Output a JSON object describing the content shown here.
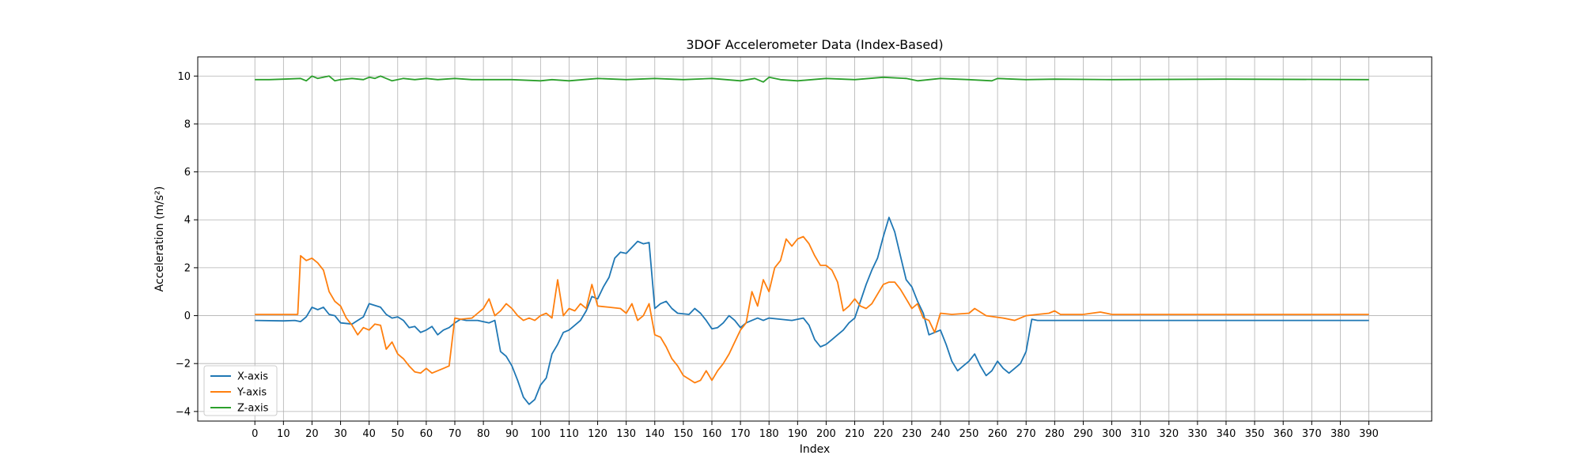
{
  "chart_data": {
    "type": "line",
    "title": "3DOF Accelerometer Data (Index-Based)",
    "xlabel": "Index",
    "ylabel": "Acceleration (m/s²)",
    "xlim": [
      -20,
      412
    ],
    "ylim": [
      -4.4,
      10.8
    ],
    "xticks": [
      0,
      10,
      20,
      30,
      40,
      50,
      60,
      70,
      80,
      90,
      100,
      110,
      120,
      130,
      140,
      150,
      160,
      170,
      180,
      190,
      200,
      210,
      220,
      230,
      240,
      250,
      260,
      270,
      280,
      290,
      300,
      310,
      320,
      330,
      340,
      350,
      360,
      370,
      380,
      390
    ],
    "yticks": [
      -4,
      -2,
      0,
      2,
      4,
      6,
      8,
      10
    ],
    "grid": true,
    "legend_position": "lower-left",
    "series": [
      {
        "name": "X-axis",
        "color": "#1f77b4",
        "points": [
          [
            0,
            -0.2
          ],
          [
            10,
            -0.22
          ],
          [
            14,
            -0.2
          ],
          [
            16,
            -0.25
          ],
          [
            18,
            -0.05
          ],
          [
            20,
            0.35
          ],
          [
            22,
            0.25
          ],
          [
            24,
            0.35
          ],
          [
            26,
            0.05
          ],
          [
            28,
            0.0
          ],
          [
            30,
            -0.3
          ],
          [
            34,
            -0.35
          ],
          [
            36,
            -0.2
          ],
          [
            38,
            -0.05
          ],
          [
            40,
            0.5
          ],
          [
            44,
            0.35
          ],
          [
            46,
            0.05
          ],
          [
            48,
            -0.1
          ],
          [
            50,
            -0.05
          ],
          [
            52,
            -0.2
          ],
          [
            54,
            -0.5
          ],
          [
            56,
            -0.45
          ],
          [
            58,
            -0.7
          ],
          [
            60,
            -0.6
          ],
          [
            62,
            -0.45
          ],
          [
            64,
            -0.8
          ],
          [
            66,
            -0.6
          ],
          [
            68,
            -0.5
          ],
          [
            70,
            -0.3
          ],
          [
            72,
            -0.15
          ],
          [
            74,
            -0.2
          ],
          [
            78,
            -0.2
          ],
          [
            82,
            -0.3
          ],
          [
            84,
            -0.2
          ],
          [
            86,
            -1.5
          ],
          [
            88,
            -1.7
          ],
          [
            90,
            -2.1
          ],
          [
            92,
            -2.7
          ],
          [
            94,
            -3.4
          ],
          [
            96,
            -3.7
          ],
          [
            98,
            -3.5
          ],
          [
            100,
            -2.9
          ],
          [
            102,
            -2.6
          ],
          [
            104,
            -1.6
          ],
          [
            106,
            -1.2
          ],
          [
            108,
            -0.7
          ],
          [
            110,
            -0.6
          ],
          [
            112,
            -0.4
          ],
          [
            114,
            -0.2
          ],
          [
            116,
            0.2
          ],
          [
            118,
            0.8
          ],
          [
            120,
            0.7
          ],
          [
            122,
            1.2
          ],
          [
            124,
            1.6
          ],
          [
            126,
            2.4
          ],
          [
            128,
            2.65
          ],
          [
            130,
            2.6
          ],
          [
            132,
            2.85
          ],
          [
            134,
            3.1
          ],
          [
            136,
            3.0
          ],
          [
            138,
            3.05
          ],
          [
            140,
            0.3
          ],
          [
            142,
            0.5
          ],
          [
            144,
            0.6
          ],
          [
            146,
            0.3
          ],
          [
            148,
            0.1
          ],
          [
            152,
            0.05
          ],
          [
            154,
            0.3
          ],
          [
            156,
            0.1
          ],
          [
            158,
            -0.2
          ],
          [
            160,
            -0.55
          ],
          [
            162,
            -0.5
          ],
          [
            164,
            -0.3
          ],
          [
            166,
            0.0
          ],
          [
            168,
            -0.2
          ],
          [
            170,
            -0.5
          ],
          [
            172,
            -0.3
          ],
          [
            174,
            -0.2
          ],
          [
            176,
            -0.1
          ],
          [
            178,
            -0.2
          ],
          [
            180,
            -0.1
          ],
          [
            184,
            -0.15
          ],
          [
            188,
            -0.2
          ],
          [
            192,
            -0.1
          ],
          [
            194,
            -0.4
          ],
          [
            196,
            -1.0
          ],
          [
            198,
            -1.3
          ],
          [
            200,
            -1.2
          ],
          [
            202,
            -1.0
          ],
          [
            204,
            -0.8
          ],
          [
            206,
            -0.6
          ],
          [
            208,
            -0.3
          ],
          [
            210,
            -0.1
          ],
          [
            212,
            0.6
          ],
          [
            214,
            1.3
          ],
          [
            216,
            1.9
          ],
          [
            218,
            2.4
          ],
          [
            220,
            3.3
          ],
          [
            222,
            4.1
          ],
          [
            224,
            3.5
          ],
          [
            226,
            2.5
          ],
          [
            228,
            1.5
          ],
          [
            230,
            1.2
          ],
          [
            232,
            0.6
          ],
          [
            234,
            0.1
          ],
          [
            236,
            -0.8
          ],
          [
            238,
            -0.7
          ],
          [
            240,
            -0.6
          ],
          [
            242,
            -1.2
          ],
          [
            244,
            -1.9
          ],
          [
            246,
            -2.3
          ],
          [
            248,
            -2.1
          ],
          [
            250,
            -1.9
          ],
          [
            252,
            -1.6
          ],
          [
            254,
            -2.1
          ],
          [
            256,
            -2.5
          ],
          [
            258,
            -2.3
          ],
          [
            260,
            -1.9
          ],
          [
            262,
            -2.2
          ],
          [
            264,
            -2.4
          ],
          [
            266,
            -2.2
          ],
          [
            268,
            -2.0
          ],
          [
            270,
            -1.5
          ],
          [
            272,
            -0.15
          ],
          [
            274,
            -0.2
          ],
          [
            300,
            -0.2
          ],
          [
            340,
            -0.2
          ],
          [
            390,
            -0.2
          ]
        ]
      },
      {
        "name": "Y-axis",
        "color": "#ff7f0e",
        "points": [
          [
            0,
            0.05
          ],
          [
            10,
            0.05
          ],
          [
            15,
            0.05
          ],
          [
            16,
            2.5
          ],
          [
            18,
            2.3
          ],
          [
            20,
            2.4
          ],
          [
            22,
            2.2
          ],
          [
            24,
            1.9
          ],
          [
            26,
            1.0
          ],
          [
            28,
            0.6
          ],
          [
            30,
            0.4
          ],
          [
            32,
            -0.1
          ],
          [
            34,
            -0.4
          ],
          [
            36,
            -0.8
          ],
          [
            38,
            -0.5
          ],
          [
            40,
            -0.6
          ],
          [
            42,
            -0.35
          ],
          [
            44,
            -0.4
          ],
          [
            46,
            -1.4
          ],
          [
            48,
            -1.1
          ],
          [
            50,
            -1.6
          ],
          [
            52,
            -1.8
          ],
          [
            54,
            -2.1
          ],
          [
            56,
            -2.35
          ],
          [
            58,
            -2.4
          ],
          [
            60,
            -2.2
          ],
          [
            62,
            -2.4
          ],
          [
            64,
            -2.3
          ],
          [
            66,
            -2.2
          ],
          [
            68,
            -2.1
          ],
          [
            70,
            -0.1
          ],
          [
            72,
            -0.15
          ],
          [
            76,
            -0.1
          ],
          [
            78,
            0.1
          ],
          [
            80,
            0.3
          ],
          [
            82,
            0.7
          ],
          [
            84,
            0.0
          ],
          [
            86,
            0.2
          ],
          [
            88,
            0.5
          ],
          [
            90,
            0.3
          ],
          [
            92,
            0.0
          ],
          [
            94,
            -0.2
          ],
          [
            96,
            -0.1
          ],
          [
            98,
            -0.2
          ],
          [
            100,
            0.0
          ],
          [
            102,
            0.1
          ],
          [
            104,
            -0.1
          ],
          [
            106,
            1.5
          ],
          [
            108,
            0.0
          ],
          [
            110,
            0.3
          ],
          [
            112,
            0.2
          ],
          [
            114,
            0.5
          ],
          [
            116,
            0.3
          ],
          [
            118,
            1.3
          ],
          [
            120,
            0.4
          ],
          [
            124,
            0.35
          ],
          [
            128,
            0.3
          ],
          [
            130,
            0.1
          ],
          [
            132,
            0.5
          ],
          [
            134,
            -0.2
          ],
          [
            136,
            0.0
          ],
          [
            138,
            0.5
          ],
          [
            140,
            -0.8
          ],
          [
            142,
            -0.9
          ],
          [
            144,
            -1.3
          ],
          [
            146,
            -1.8
          ],
          [
            148,
            -2.1
          ],
          [
            150,
            -2.5
          ],
          [
            152,
            -2.65
          ],
          [
            154,
            -2.8
          ],
          [
            156,
            -2.7
          ],
          [
            158,
            -2.3
          ],
          [
            160,
            -2.7
          ],
          [
            162,
            -2.3
          ],
          [
            164,
            -2.0
          ],
          [
            166,
            -1.6
          ],
          [
            168,
            -1.1
          ],
          [
            170,
            -0.6
          ],
          [
            172,
            -0.3
          ],
          [
            174,
            1.0
          ],
          [
            176,
            0.4
          ],
          [
            178,
            1.5
          ],
          [
            180,
            1.0
          ],
          [
            182,
            2.0
          ],
          [
            184,
            2.3
          ],
          [
            186,
            3.2
          ],
          [
            188,
            2.9
          ],
          [
            190,
            3.2
          ],
          [
            192,
            3.3
          ],
          [
            194,
            3.0
          ],
          [
            196,
            2.5
          ],
          [
            198,
            2.1
          ],
          [
            200,
            2.1
          ],
          [
            202,
            1.9
          ],
          [
            204,
            1.4
          ],
          [
            206,
            0.2
          ],
          [
            208,
            0.4
          ],
          [
            210,
            0.7
          ],
          [
            212,
            0.4
          ],
          [
            214,
            0.3
          ],
          [
            216,
            0.5
          ],
          [
            218,
            0.9
          ],
          [
            220,
            1.3
          ],
          [
            222,
            1.4
          ],
          [
            224,
            1.4
          ],
          [
            226,
            1.1
          ],
          [
            228,
            0.7
          ],
          [
            230,
            0.3
          ],
          [
            232,
            0.5
          ],
          [
            234,
            -0.1
          ],
          [
            236,
            -0.2
          ],
          [
            238,
            -0.7
          ],
          [
            240,
            0.1
          ],
          [
            244,
            0.05
          ],
          [
            250,
            0.1
          ],
          [
            252,
            0.3
          ],
          [
            256,
            0.0
          ],
          [
            262,
            -0.1
          ],
          [
            266,
            -0.2
          ],
          [
            270,
            0.0
          ],
          [
            274,
            0.05
          ],
          [
            278,
            0.1
          ],
          [
            280,
            0.2
          ],
          [
            282,
            0.05
          ],
          [
            290,
            0.05
          ],
          [
            296,
            0.15
          ],
          [
            300,
            0.05
          ],
          [
            340,
            0.05
          ],
          [
            390,
            0.05
          ]
        ]
      },
      {
        "name": "Z-axis",
        "color": "#2ca02c",
        "points": [
          [
            0,
            9.85
          ],
          [
            5,
            9.85
          ],
          [
            10,
            9.87
          ],
          [
            16,
            9.9
          ],
          [
            18,
            9.8
          ],
          [
            20,
            10.0
          ],
          [
            22,
            9.9
          ],
          [
            24,
            9.95
          ],
          [
            26,
            10.0
          ],
          [
            28,
            9.8
          ],
          [
            30,
            9.85
          ],
          [
            34,
            9.9
          ],
          [
            38,
            9.85
          ],
          [
            40,
            9.95
          ],
          [
            42,
            9.9
          ],
          [
            44,
            10.0
          ],
          [
            46,
            9.9
          ],
          [
            48,
            9.8
          ],
          [
            52,
            9.9
          ],
          [
            56,
            9.85
          ],
          [
            60,
            9.9
          ],
          [
            64,
            9.85
          ],
          [
            70,
            9.9
          ],
          [
            76,
            9.85
          ],
          [
            90,
            9.85
          ],
          [
            100,
            9.8
          ],
          [
            104,
            9.85
          ],
          [
            110,
            9.8
          ],
          [
            120,
            9.9
          ],
          [
            130,
            9.85
          ],
          [
            140,
            9.9
          ],
          [
            150,
            9.85
          ],
          [
            160,
            9.9
          ],
          [
            170,
            9.8
          ],
          [
            175,
            9.9
          ],
          [
            178,
            9.75
          ],
          [
            180,
            9.95
          ],
          [
            184,
            9.85
          ],
          [
            190,
            9.8
          ],
          [
            200,
            9.9
          ],
          [
            210,
            9.85
          ],
          [
            220,
            9.95
          ],
          [
            228,
            9.9
          ],
          [
            232,
            9.8
          ],
          [
            240,
            9.9
          ],
          [
            250,
            9.85
          ],
          [
            258,
            9.8
          ],
          [
            260,
            9.9
          ],
          [
            270,
            9.85
          ],
          [
            280,
            9.87
          ],
          [
            300,
            9.85
          ],
          [
            340,
            9.87
          ],
          [
            390,
            9.85
          ]
        ]
      }
    ]
  }
}
